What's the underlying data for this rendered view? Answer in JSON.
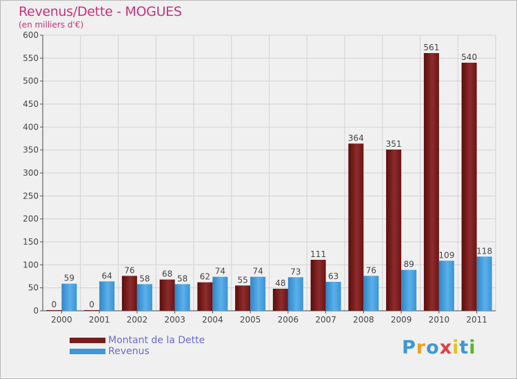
{
  "header": {
    "title": "Revenus/Dette - MOGUES",
    "subtitle": "(en milliers d'€)"
  },
  "legend": {
    "items": [
      {
        "label": "Montant de la Dette",
        "color": "#7a1c1c"
      },
      {
        "label": "Revenus",
        "color": "#3c98d8"
      }
    ]
  },
  "logo": {
    "letters": [
      "P",
      "r",
      "o",
      "x",
      "i",
      "t",
      "i"
    ],
    "colors": [
      "#3c98d8",
      "#f0a020",
      "#3c98d8",
      "#e04040",
      "#e8c020",
      "#3c98d8",
      "#60b030"
    ]
  },
  "chart_data": {
    "type": "bar",
    "title": "Revenus/Dette - MOGUES",
    "subtitle": "(en milliers d'€)",
    "xlabel": "",
    "ylabel": "",
    "ylim": [
      0,
      600
    ],
    "yticks": [
      0,
      50,
      100,
      150,
      200,
      250,
      300,
      350,
      400,
      450,
      500,
      550,
      600
    ],
    "grid": true,
    "categories": [
      "2000",
      "2001",
      "2002",
      "2003",
      "2004",
      "2005",
      "2006",
      "2007",
      "2008",
      "2009",
      "2010",
      "2011"
    ],
    "series": [
      {
        "name": "Montant de la Dette",
        "color": "#7a1c1c",
        "values": [
          0,
          0,
          76,
          68,
          62,
          55,
          48,
          111,
          364,
          351,
          561,
          540
        ]
      },
      {
        "name": "Revenus",
        "color": "#3c98d8",
        "values": [
          59,
          64,
          58,
          58,
          74,
          74,
          73,
          63,
          76,
          89,
          109,
          118
        ]
      }
    ]
  }
}
